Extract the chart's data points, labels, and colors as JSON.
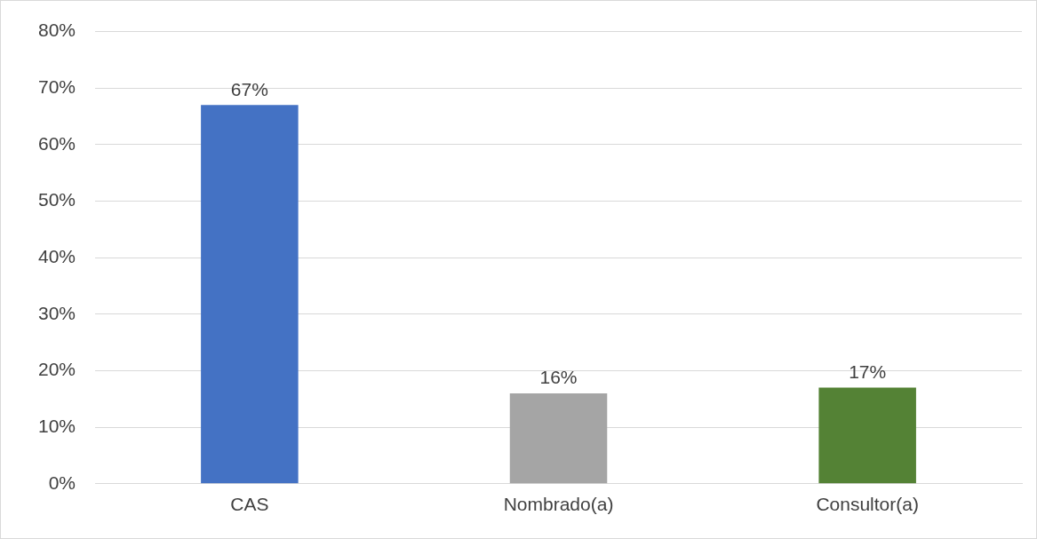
{
  "chart_data": {
    "type": "bar",
    "categories": [
      "CAS",
      "Nombrado(a)",
      "Consultor(a)"
    ],
    "values": [
      67,
      16,
      17
    ],
    "colors": [
      "#4472c4",
      "#a5a5a5",
      "#548235"
    ],
    "value_labels": [
      "67%",
      "16%",
      "17%"
    ],
    "ylim": [
      0,
      80
    ],
    "yticks": [
      {
        "value": 0,
        "label": "0%"
      },
      {
        "value": 10,
        "label": "10%"
      },
      {
        "value": 20,
        "label": "20%"
      },
      {
        "value": 30,
        "label": "30%"
      },
      {
        "value": 40,
        "label": "40%"
      },
      {
        "value": 50,
        "label": "50%"
      },
      {
        "value": 60,
        "label": "60%"
      },
      {
        "value": 70,
        "label": "70%"
      },
      {
        "value": 80,
        "label": "80%"
      }
    ],
    "grid": "y",
    "legend": false
  }
}
